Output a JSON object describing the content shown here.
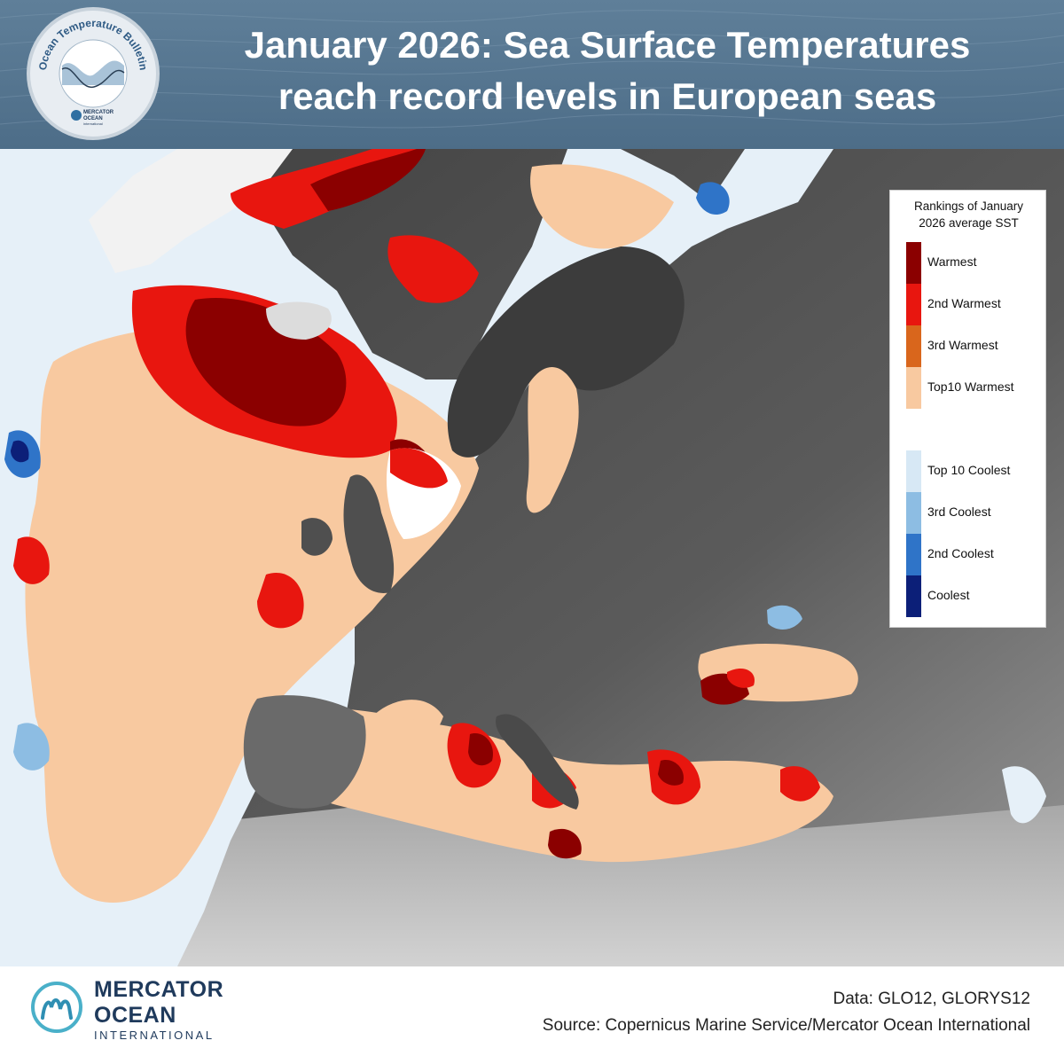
{
  "header": {
    "title_line1": "January 2026: Sea Surface Temperatures",
    "title_line2": "reach record levels in European seas",
    "badge_text": "Ocean Temperature Bulletin",
    "badge_org_line1": "MERCATOR",
    "badge_org_line2": "OCEAN",
    "badge_org_line3": "international"
  },
  "legend": {
    "title_line1": "Rankings of January",
    "title_line2": "2026 average SST",
    "items": [
      {
        "label": "Warmest",
        "color": "#8b0000"
      },
      {
        "label": "2nd Warmest",
        "color": "#e8160f"
      },
      {
        "label": "3rd Warmest",
        "color": "#d9661c"
      },
      {
        "label": "Top10 Warmest",
        "color": "#f8c9a0"
      },
      {
        "label": "",
        "color": "#ffffff"
      },
      {
        "label": "Top 10 Coolest",
        "color": "#d7e8f5"
      },
      {
        "label": "3rd Coolest",
        "color": "#8dbde3"
      },
      {
        "label": "2nd Coolest",
        "color": "#2f74c8"
      },
      {
        "label": "Coolest",
        "color": "#0c1f78"
      }
    ]
  },
  "footer": {
    "logo_line1": "MERCATOR",
    "logo_line2": "OCEAN",
    "logo_line3": "INTERNATIONAL",
    "data_credit": "Data: GLO12, GLORYS12",
    "source_credit": "Source: Copernicus Marine Service/Mercator Ocean International"
  },
  "colors": {
    "header_bg": "#557590",
    "land": "#5a5a5a",
    "ice": "#f4f4f4"
  }
}
